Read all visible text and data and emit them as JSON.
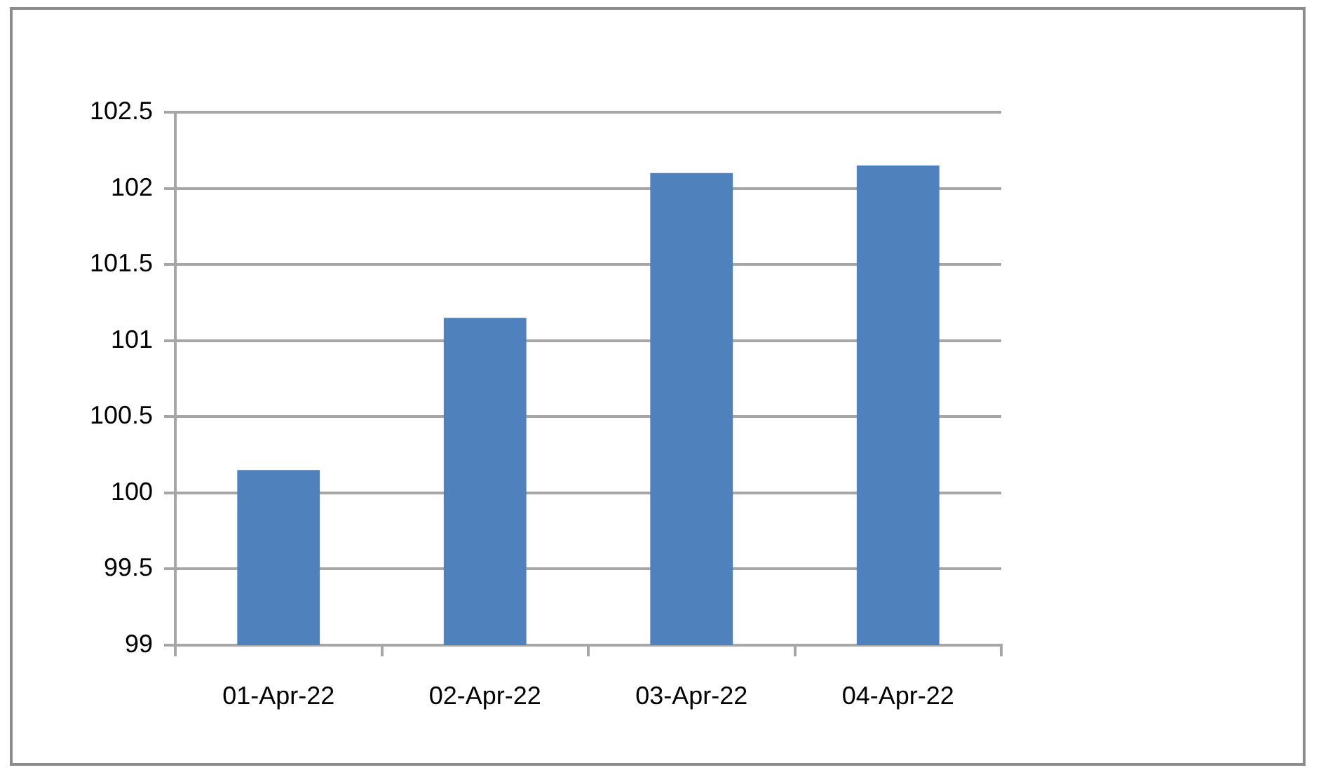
{
  "chart_data": {
    "type": "bar",
    "categories": [
      "01-Apr-22",
      "02-Apr-22",
      "03-Apr-22",
      "04-Apr-22"
    ],
    "values": [
      100.15,
      101.15,
      102.1,
      102.15
    ],
    "color": "#4f81bd",
    "ylim": [
      99,
      102.5
    ],
    "yticks": [
      99,
      99.5,
      100,
      100.5,
      101,
      101.5,
      102,
      102.5
    ],
    "grid": "y"
  }
}
